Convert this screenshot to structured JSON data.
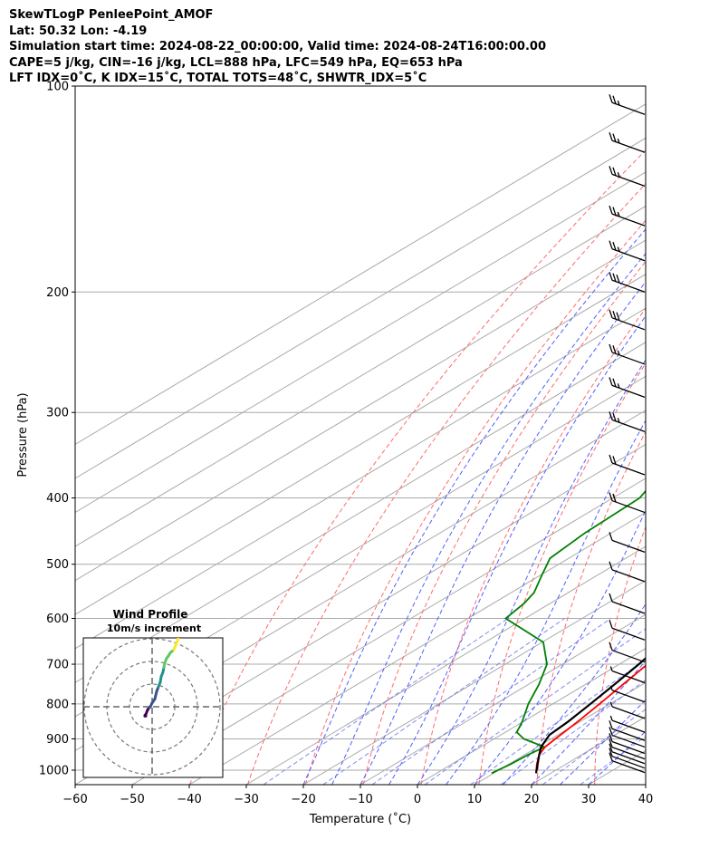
{
  "header": {
    "lines": [
      "SkewTLogP PenleePoint_AMOF",
      "Lat: 50.32   Lon: -4.19",
      "Simulation start time: 2024-08-22_00:00:00, Valid time: 2024-08-24T16:00:00.00",
      "CAPE=5 j/kg, CIN=-16 j/kg, LCL=888 hPa, LFC=549 hPa, EQ=653 hPa",
      "LFT IDX=0˚C, K IDX=15˚C, TOTAL TOTS=48˚C, SHWTR_IDX=5˚C"
    ]
  },
  "chart_data": {
    "type": "line",
    "subtype": "skew-t log-p",
    "xlabel": "Temperature (˚C)",
    "ylabel": "Pressure (hPa)",
    "xlim": [
      -60,
      40
    ],
    "ylim": [
      1050,
      100
    ],
    "y_scale": "log",
    "xticks": [
      "−60",
      "−50",
      "−40",
      "−30",
      "−20",
      "−10",
      "0",
      "10",
      "20",
      "30",
      "40"
    ],
    "yticks": [
      "100",
      "200",
      "300",
      "400",
      "500",
      "600",
      "700",
      "800",
      "900",
      "1000"
    ],
    "grid": true,
    "colors": {
      "temperature": "#ff0000",
      "dewpoint": "#008000",
      "parcel": "#000000",
      "cape_fill": "#a2c8e0",
      "dry_adiabat": "#ff6a6a",
      "moist_adiabat": "#5060ff",
      "mixing_ratio": "#6070f0",
      "isotherm": "#aaaaaa"
    },
    "series": [
      {
        "key": "temperature",
        "points": [
          [
            1010,
            17.4
          ],
          [
            980,
            14.9
          ],
          [
            950,
            12.6
          ],
          [
            925,
            11.3
          ],
          [
            900,
            10.7
          ],
          [
            850,
            9.6
          ],
          [
            800,
            8.2
          ],
          [
            750,
            6.6
          ],
          [
            700,
            4.9
          ],
          [
            650,
            3.1
          ],
          [
            600,
            1.2
          ],
          [
            550,
            -2.2
          ],
          [
            500,
            -6.6
          ],
          [
            450,
            -11.3
          ],
          [
            400,
            -16.3
          ],
          [
            350,
            -22.1
          ],
          [
            300,
            -27.8
          ],
          [
            250,
            -35.7
          ],
          [
            200,
            -43.3
          ],
          [
            150,
            -52.6
          ],
          [
            120,
            -58.3
          ],
          [
            100,
            -62.2
          ]
        ]
      },
      {
        "key": "dewpoint",
        "points": [
          [
            1010,
            9.6
          ],
          [
            980,
            10.3
          ],
          [
            950,
            10.6
          ],
          [
            925,
            11.2
          ],
          [
            900,
            5.2
          ],
          [
            880,
            2.0
          ],
          [
            850,
            -0.1
          ],
          [
            800,
            -4.3
          ],
          [
            750,
            -8.1
          ],
          [
            700,
            -12.7
          ],
          [
            650,
            -19.8
          ],
          [
            600,
            -33.4
          ],
          [
            570,
            -34.6
          ],
          [
            550,
            -36.0
          ],
          [
            520,
            -39.6
          ],
          [
            490,
            -43.3
          ],
          [
            450,
            -44.6
          ],
          [
            400,
            -45.3
          ],
          [
            360,
            -49.8
          ],
          [
            320,
            -51.8
          ],
          [
            280,
            -56.9
          ],
          [
            250,
            -61.5
          ],
          [
            210,
            -69.8
          ],
          [
            190,
            -75.6
          ],
          [
            170,
            -75.8
          ],
          [
            140,
            -75.9
          ],
          [
            120,
            -76.1
          ],
          [
            100,
            -76.3
          ]
        ]
      },
      {
        "key": "parcel",
        "points": [
          [
            1010,
            17.4
          ],
          [
            950,
            12.6
          ],
          [
            925,
            10.6
          ],
          [
            888,
            8.5
          ],
          [
            850,
            7.9
          ],
          [
            800,
            6.6
          ],
          [
            750,
            5.1
          ],
          [
            700,
            3.4
          ],
          [
            650,
            1.4
          ],
          [
            600,
            -0.9
          ],
          [
            550,
            -3.7
          ],
          [
            500,
            -7.1
          ],
          [
            450,
            -11.2
          ],
          [
            400,
            -16.0
          ],
          [
            350,
            -21.8
          ],
          [
            300,
            -28.9
          ],
          [
            250,
            -37.4
          ],
          [
            200,
            -48.2
          ],
          [
            150,
            -61.9
          ],
          [
            120,
            -72.4
          ],
          [
            100,
            -80.8
          ]
        ]
      }
    ],
    "wind_barbs": [
      {
        "p": 1008,
        "speed_kt": 12
      },
      {
        "p": 993,
        "speed_kt": 12
      },
      {
        "p": 978,
        "speed_kt": 12
      },
      {
        "p": 963,
        "speed_kt": 12
      },
      {
        "p": 945,
        "speed_kt": 12
      },
      {
        "p": 925,
        "speed_kt": 12
      },
      {
        "p": 905,
        "speed_kt": 10
      },
      {
        "p": 880,
        "speed_kt": 8
      },
      {
        "p": 840,
        "speed_kt": 6
      },
      {
        "p": 795,
        "speed_kt": 6
      },
      {
        "p": 745,
        "speed_kt": 8
      },
      {
        "p": 695,
        "speed_kt": 10
      },
      {
        "p": 645,
        "speed_kt": 10
      },
      {
        "p": 590,
        "speed_kt": 13
      },
      {
        "p": 530,
        "speed_kt": 13
      },
      {
        "p": 480,
        "speed_kt": 12
      },
      {
        "p": 420,
        "speed_kt": 20
      },
      {
        "p": 370,
        "speed_kt": 20
      },
      {
        "p": 320,
        "speed_kt": 28
      },
      {
        "p": 285,
        "speed_kt": 28
      },
      {
        "p": 255,
        "speed_kt": 28
      },
      {
        "p": 227,
        "speed_kt": 30
      },
      {
        "p": 200,
        "speed_kt": 30
      },
      {
        "p": 180,
        "speed_kt": 25
      },
      {
        "p": 160,
        "speed_kt": 25
      },
      {
        "p": 140,
        "speed_kt": 25
      },
      {
        "p": 125,
        "speed_kt": 25
      },
      {
        "p": 110,
        "speed_kt": 25
      }
    ],
    "inset": {
      "title": "Wind Profile",
      "subtitle": "10m/s increment",
      "hodograph": [
        [
          -8,
          -11
        ],
        [
          -8,
          -12
        ],
        [
          -7,
          -12
        ],
        [
          -7,
          -10
        ],
        [
          -5,
          -4
        ],
        [
          -3,
          -1
        ],
        [
          -2,
          0
        ],
        [
          0,
          5
        ],
        [
          3,
          10
        ],
        [
          5,
          20
        ],
        [
          7,
          26
        ],
        [
          9,
          32
        ],
        [
          10,
          39
        ],
        [
          12,
          45
        ],
        [
          13,
          51
        ],
        [
          14,
          57
        ],
        [
          16,
          63
        ],
        [
          18,
          66
        ],
        [
          20,
          70
        ],
        [
          24,
          74
        ],
        [
          26,
          80
        ],
        [
          28,
          86
        ],
        [
          29,
          92
        ],
        [
          30,
          98
        ],
        [
          30,
          100
        ]
      ]
    }
  }
}
